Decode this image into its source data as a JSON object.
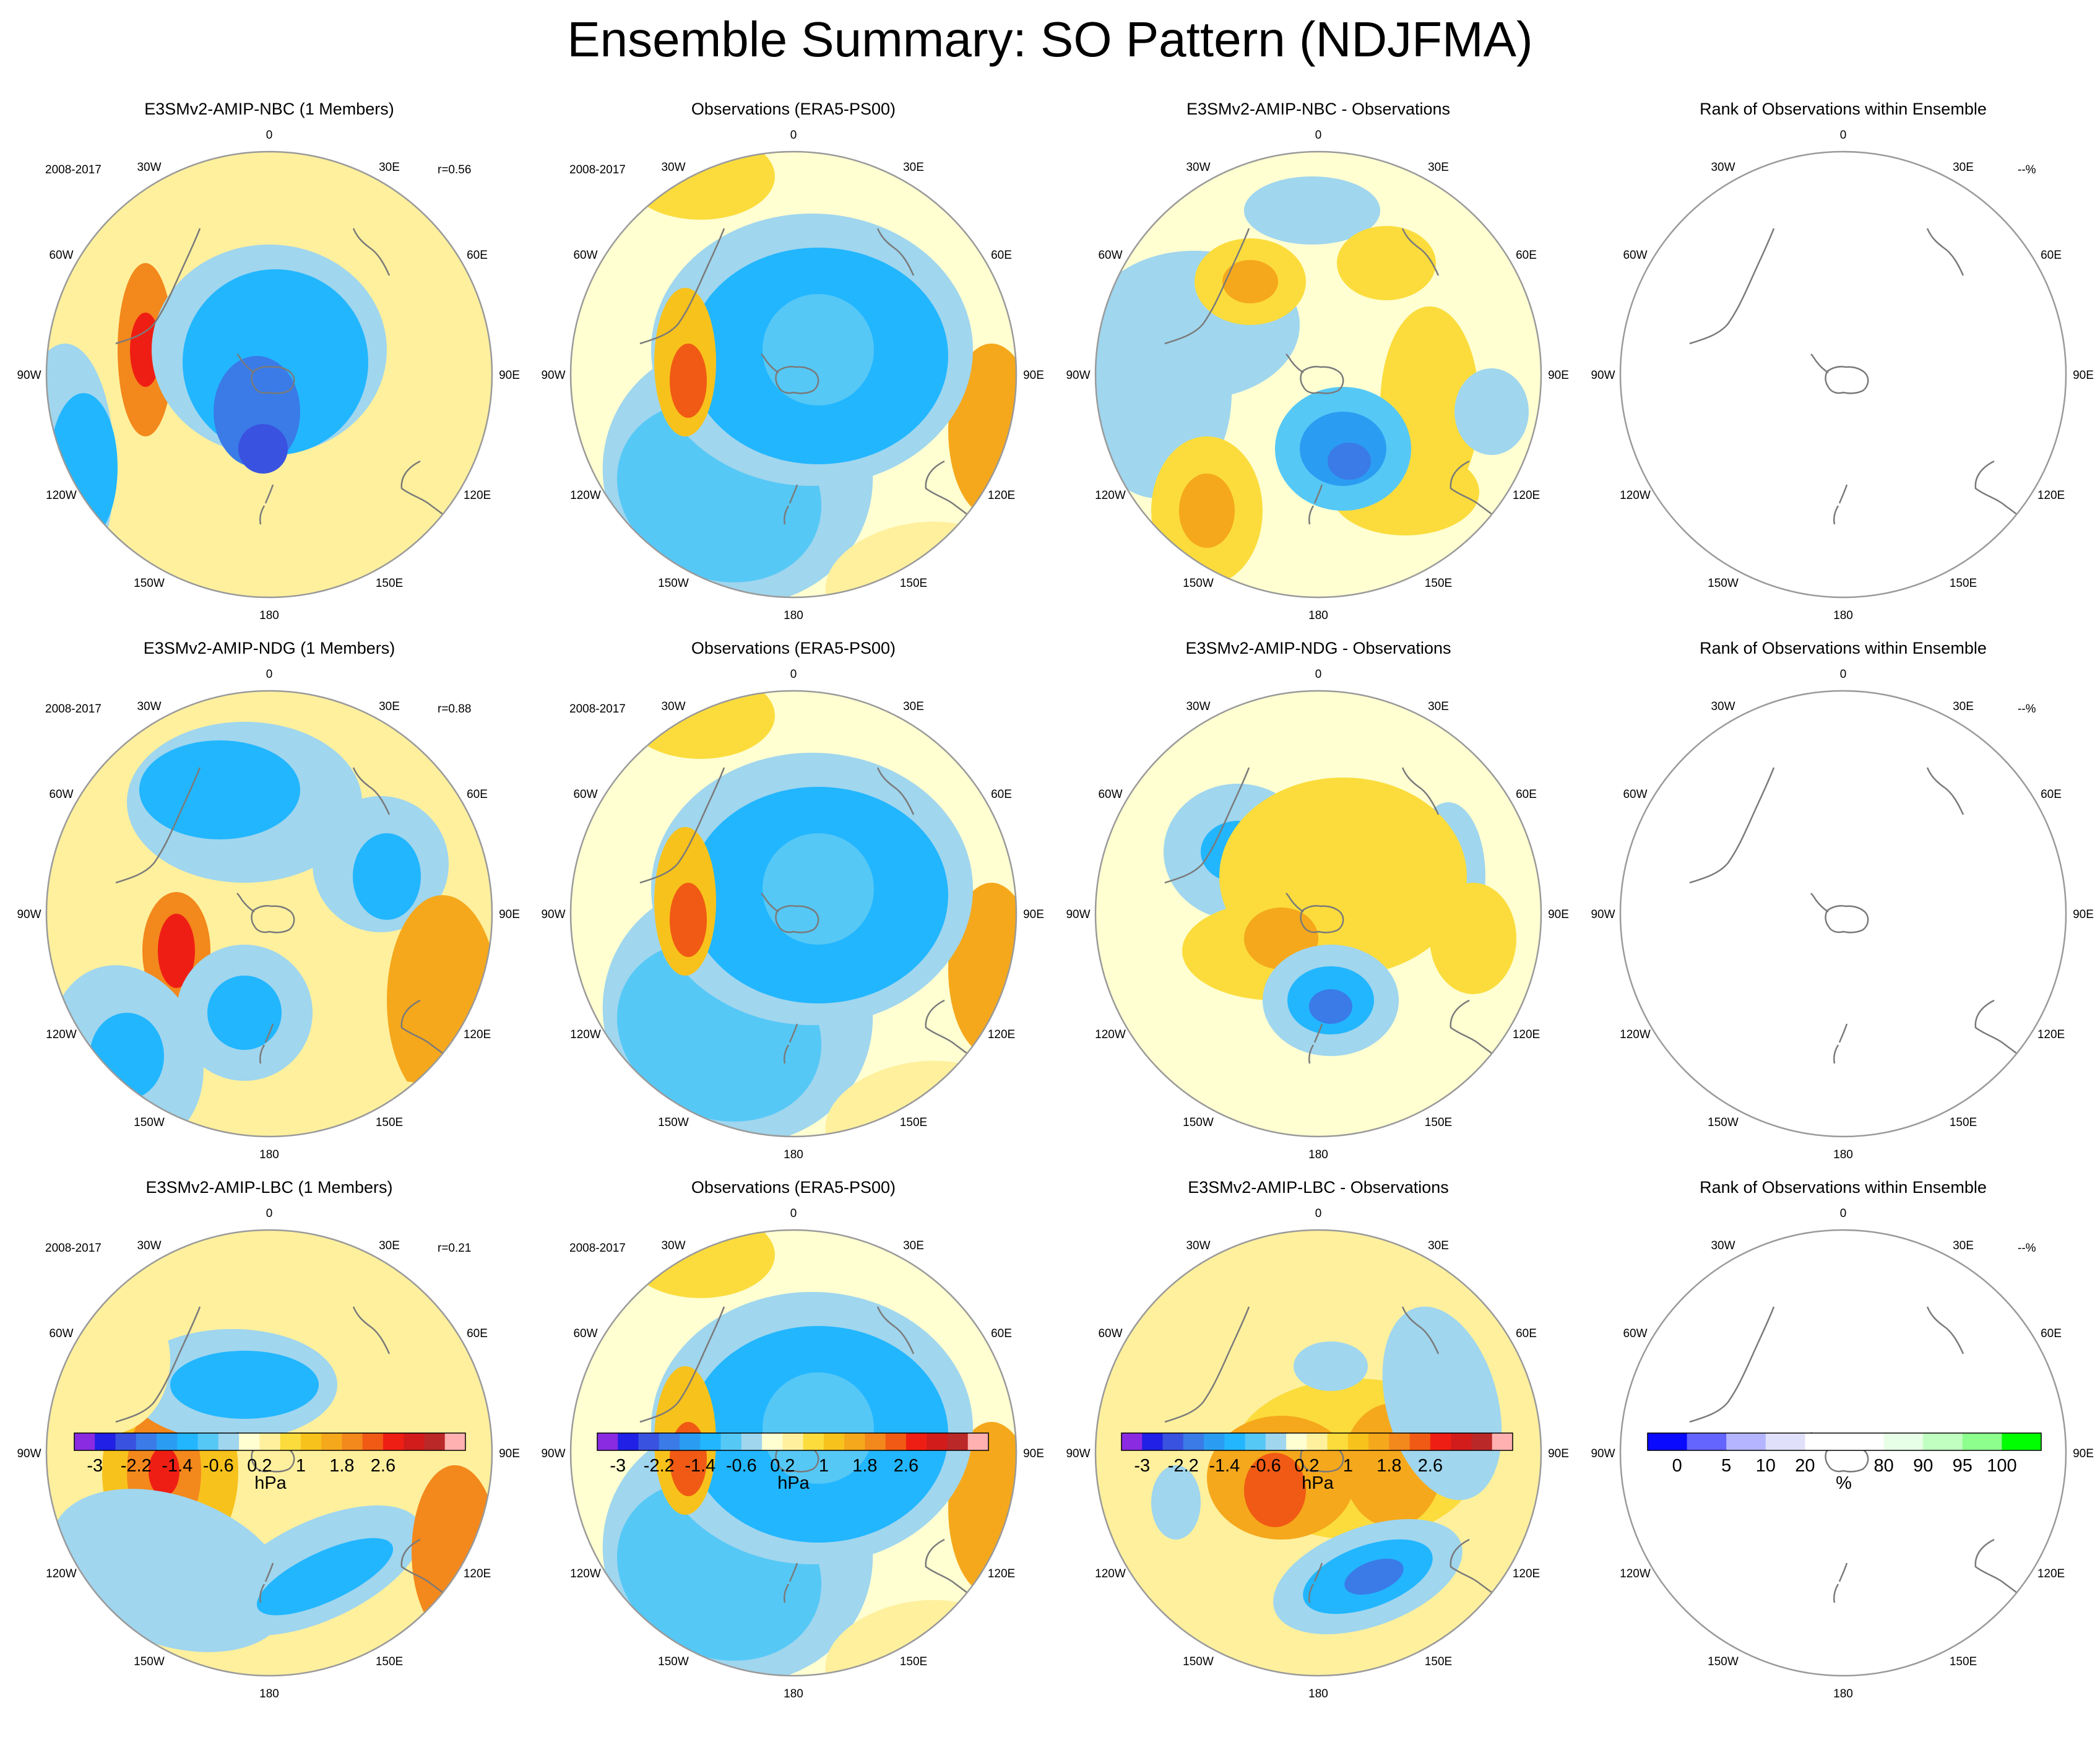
{
  "title": "Ensemble Summary: SO Pattern (NDJFMA)",
  "colors": {
    "diff_bins": [
      "#8a2be2",
      "#2020e6",
      "#3a52e0",
      "#3a7be8",
      "#2a9df2",
      "#22b6ff",
      "#56c8f6",
      "#a0d6ee",
      "#ffffd2",
      "#fff09e",
      "#fbdc3c",
      "#f8c21c",
      "#f5a81c",
      "#f3881c",
      "#f05a14",
      "#ef1e14",
      "#d21c1c",
      "#bb2828",
      "#ffb0b0"
    ],
    "rank_bins": [
      "#0a0aff",
      "#6464ff",
      "#b4b4ff",
      "#e0e0fa",
      "#ffffff",
      "#ffffff",
      "#e6ffe6",
      "#c0ffc0",
      "#8cff8c",
      "#00ff00"
    ],
    "coast": "#7a7a7a",
    "circle": "#9a9a9a"
  },
  "lon_labels": [
    "0",
    "30E",
    "60E",
    "90E",
    "120E",
    "150E",
    "180",
    "150W",
    "120W",
    "90W",
    "60W",
    "30W"
  ],
  "rows": [
    {
      "model": {
        "title": "E3SMv2-AMIP-NBC (1 Members)",
        "period": "2008-2017",
        "r": "r=0.56"
      },
      "obs": {
        "title": "Observations (ERA5-PS00)",
        "period": "2008-2017"
      },
      "diff": {
        "title": "E3SMv2-AMIP-NBC - Observations"
      },
      "rank": {
        "title": "Rank of Observations within Ensemble",
        "pct": "--%"
      }
    },
    {
      "model": {
        "title": "E3SMv2-AMIP-NDG (1 Members)",
        "period": "2008-2017",
        "r": "r=0.88"
      },
      "obs": {
        "title": "Observations (ERA5-PS00)",
        "period": "2008-2017"
      },
      "diff": {
        "title": "E3SMv2-AMIP-NDG - Observations"
      },
      "rank": {
        "title": "Rank of Observations within Ensemble",
        "pct": "--%"
      }
    },
    {
      "model": {
        "title": "E3SMv2-AMIP-LBC (1 Members)",
        "period": "2008-2017",
        "r": "r=0.21"
      },
      "obs": {
        "title": "Observations (ERA5-PS00)",
        "period": "2008-2017"
      },
      "diff": {
        "title": "E3SMv2-AMIP-LBC - Observations"
      },
      "rank": {
        "title": "Rank of Observations within Ensemble",
        "pct": "--%"
      }
    }
  ],
  "colorbars": {
    "hpa": {
      "ticks": [
        "-3",
        "-2.2",
        "-1.4",
        "-0.6",
        "0.2",
        "1",
        "1.8",
        "2.6"
      ],
      "unit": "hPa"
    },
    "rank": {
      "ticks": [
        "0",
        "5",
        "10",
        "20",
        "80",
        "90",
        "95",
        "100"
      ],
      "unit": "%"
    }
  }
}
